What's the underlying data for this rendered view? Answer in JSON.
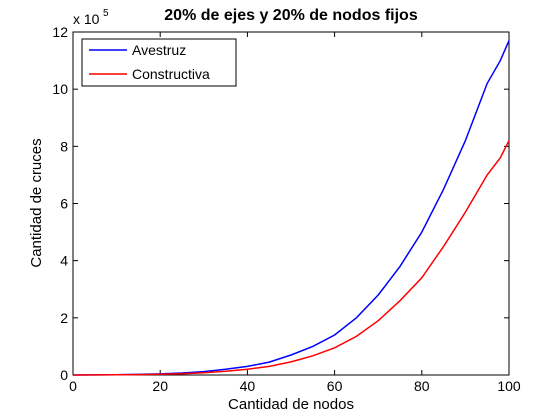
{
  "chart_data": {
    "type": "line",
    "title": "20% de ejes y 20% de nodos fijos",
    "xlabel": "Cantidad de nodos",
    "ylabel": "Cantidad de cruces",
    "y_multiplier_base": "x 10",
    "y_multiplier_exp": "5",
    "xlim": [
      0,
      100
    ],
    "ylim": [
      0,
      12
    ],
    "xticks": [
      "0",
      "20",
      "40",
      "60",
      "80",
      "100"
    ],
    "yticks": [
      "0",
      "2",
      "4",
      "6",
      "8",
      "10",
      "12"
    ],
    "grid": false,
    "legend_position": "top-left",
    "x": [
      0,
      5,
      10,
      15,
      20,
      25,
      30,
      35,
      40,
      45,
      50,
      55,
      60,
      65,
      70,
      75,
      80,
      85,
      90,
      95,
      98,
      100
    ],
    "series": [
      {
        "name": "Avestruz",
        "color": "#0000ff",
        "values": [
          0,
          0.005,
          0.01,
          0.02,
          0.04,
          0.07,
          0.12,
          0.2,
          0.3,
          0.45,
          0.7,
          1.0,
          1.4,
          2.0,
          2.8,
          3.8,
          5.0,
          6.5,
          8.2,
          10.2,
          11.0,
          11.7
        ]
      },
      {
        "name": "Constructiva",
        "color": "#ff0000",
        "values": [
          0,
          0.003,
          0.007,
          0.013,
          0.025,
          0.045,
          0.08,
          0.13,
          0.2,
          0.3,
          0.46,
          0.67,
          0.95,
          1.35,
          1.9,
          2.6,
          3.4,
          4.5,
          5.7,
          7.0,
          7.6,
          8.2
        ]
      }
    ]
  }
}
